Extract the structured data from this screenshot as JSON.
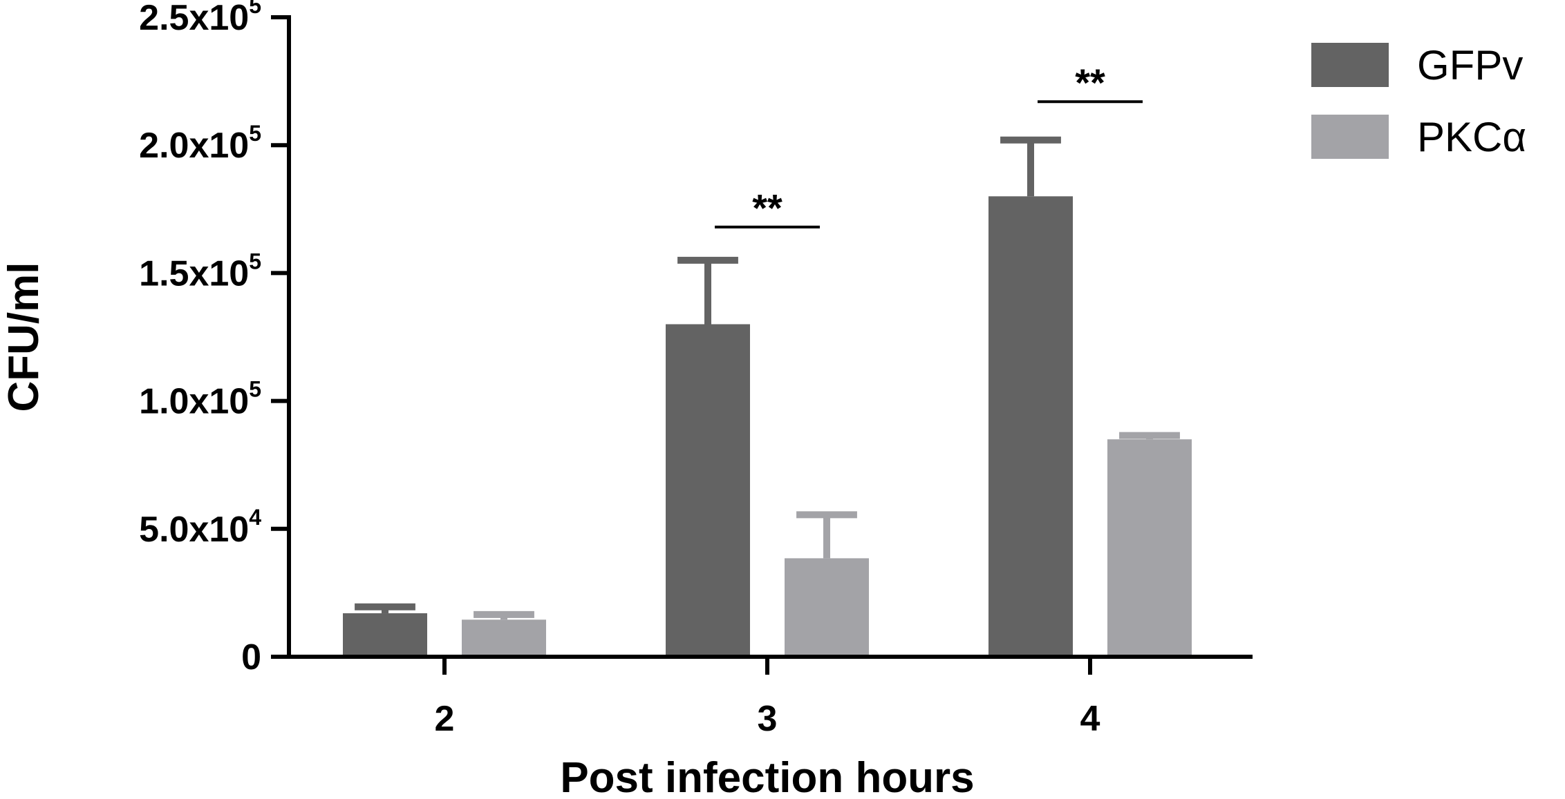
{
  "chart_data": {
    "type": "bar",
    "title": "",
    "xlabel": "Post infection hours",
    "ylabel": "CFU/ml",
    "categories": [
      "2",
      "3",
      "4"
    ],
    "ylim": [
      0,
      250000
    ],
    "yticks": [
      {
        "value": 0,
        "base": "0",
        "exp": ""
      },
      {
        "value": 50000,
        "base": "5.0x10",
        "exp": "4"
      },
      {
        "value": 100000,
        "base": "1.0x10",
        "exp": "5"
      },
      {
        "value": 150000,
        "base": "1.5x10",
        "exp": "5"
      },
      {
        "value": 200000,
        "base": "2.0x10",
        "exp": "5"
      },
      {
        "value": 250000,
        "base": "2.5x10",
        "exp": "5"
      }
    ],
    "series": [
      {
        "name": "GFPv",
        "color": "#636363",
        "values": [
          17000,
          130000,
          180000
        ],
        "errors": [
          2500,
          25000,
          22000
        ]
      },
      {
        "name": "PKCα",
        "color": "#a3a3a7",
        "values": [
          14500,
          38500,
          85000
        ],
        "errors": [
          2000,
          17000,
          1500
        ]
      }
    ],
    "significance": [
      {
        "category": "3",
        "label": "**",
        "value": 168000
      },
      {
        "category": "4",
        "label": "**",
        "value": 217000
      }
    ],
    "legend_position": "top-right",
    "grid": false
  }
}
